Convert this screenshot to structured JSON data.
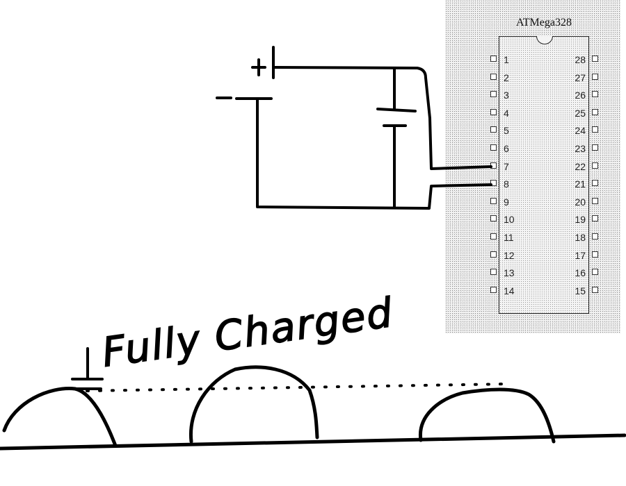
{
  "chip": {
    "name": "ATMega328",
    "left_pins": [
      "1",
      "2",
      "3",
      "4",
      "5",
      "6",
      "7",
      "8",
      "9",
      "10",
      "11",
      "12",
      "13",
      "14"
    ],
    "right_pins": [
      "28",
      "27",
      "26",
      "25",
      "24",
      "23",
      "22",
      "21",
      "20",
      "19",
      "18",
      "17",
      "16",
      "15"
    ]
  },
  "battery": {
    "plus_label": "+",
    "minus_label": "-"
  },
  "graph": {
    "annotation": "Fully Charged"
  },
  "colors": {
    "ink": "#000000",
    "chip_outline": "#222222"
  }
}
